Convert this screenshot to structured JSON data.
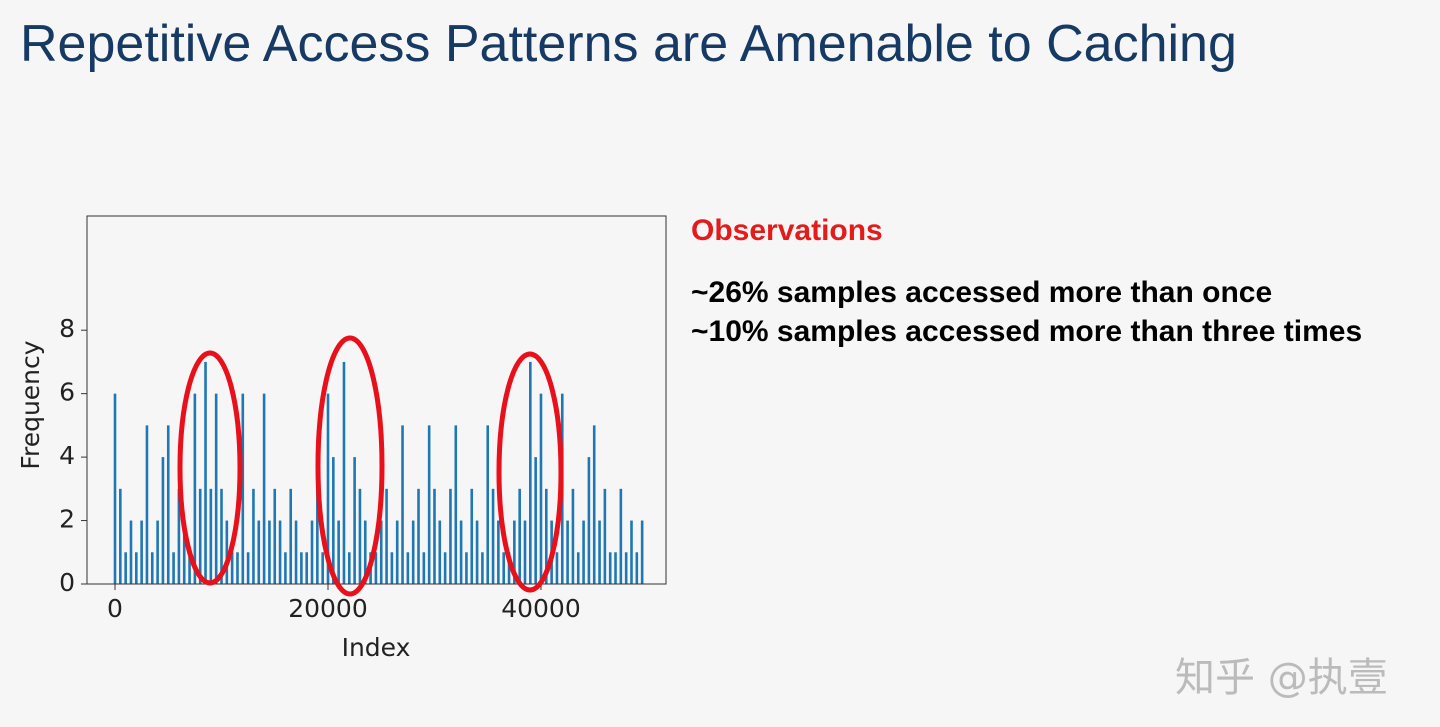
{
  "title": "Repetitive Access Patterns are Amenable to Caching",
  "observations": {
    "heading": "Observations",
    "lines": [
      "~26% samples accessed more than once",
      "~10% samples accessed more than three times"
    ]
  },
  "watermark": "知乎 @执壹",
  "chart_data": {
    "type": "bar",
    "x_label": "Index",
    "y_label": "Frequency",
    "color": "#1f77b4",
    "x": [
      0,
      500,
      1000,
      1500,
      2000,
      2500,
      3000,
      3500,
      4000,
      4500,
      5000,
      5500,
      6000,
      6500,
      7000,
      7500,
      8000,
      8500,
      9000,
      9500,
      10000,
      10500,
      11000,
      11500,
      12000,
      12500,
      13000,
      13500,
      14000,
      14500,
      15000,
      15500,
      16000,
      16500,
      17000,
      17500,
      18000,
      18500,
      19000,
      19500,
      20000,
      20500,
      21000,
      21500,
      22000,
      22500,
      23000,
      23500,
      24000,
      24500,
      25000,
      25500,
      26000,
      26500,
      27000,
      27500,
      28000,
      28500,
      29000,
      29500,
      30000,
      30500,
      31000,
      31500,
      32000,
      32500,
      33000,
      33500,
      34000,
      34500,
      35000,
      35500,
      36000,
      36500,
      37000,
      37500,
      38000,
      38500,
      39000,
      39500,
      40000,
      40500,
      41000,
      41500,
      42000,
      42500,
      43000,
      43500,
      44000,
      44500,
      45000,
      45500,
      46000,
      46500,
      47000,
      47500,
      48000,
      48500,
      49000,
      49500
    ],
    "values": [
      6,
      3,
      1,
      2,
      1,
      2,
      5,
      1,
      2,
      4,
      5,
      1,
      3,
      2,
      1,
      6,
      3,
      7,
      3,
      6,
      3,
      2,
      1,
      1,
      6,
      1,
      3,
      2,
      6,
      2,
      3,
      2,
      1,
      3,
      2,
      1,
      1,
      2,
      3,
      1,
      6,
      4,
      2,
      7,
      1,
      4,
      3,
      2,
      1,
      1,
      2,
      3,
      1,
      2,
      5,
      1,
      2,
      3,
      1,
      5,
      3,
      2,
      1,
      3,
      5,
      2,
      1,
      3,
      2,
      1,
      5,
      3,
      2,
      1,
      1,
      2,
      3,
      2,
      7,
      4,
      6,
      3,
      2,
      1,
      6,
      2,
      3,
      1,
      2,
      4,
      5,
      2,
      3,
      1,
      1,
      3,
      1,
      2,
      1,
      2
    ],
    "xlim": [
      -2630,
      51740
    ],
    "ylim": [
      0,
      11.6
    ],
    "xticks": [
      0,
      20000,
      40000
    ],
    "yticks": [
      0,
      2,
      4,
      6,
      8
    ]
  }
}
